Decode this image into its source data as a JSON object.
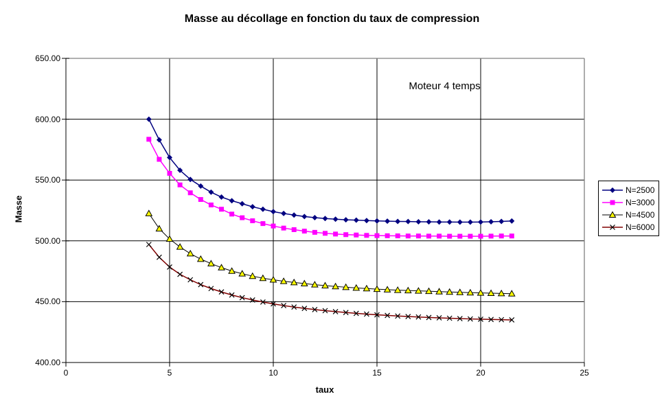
{
  "title": "Masse au décollage en fonction du taux de compression",
  "annotation": "Moteur 4 temps",
  "colors": {
    "background": "#ffffff",
    "grid": "#000000",
    "plot_border": "#808080",
    "axis": "#000000",
    "series1": "#000080",
    "series2": "#ff00ff",
    "series3_line": "#000000",
    "series3_fill": "#ffff00",
    "series4_line": "#800000",
    "series4_marker": "#000000"
  },
  "chart_data": {
    "type": "line",
    "title": "Masse au décollage en fonction du taux de compression",
    "xlabel": "taux",
    "ylabel": "Masse",
    "xlim": [
      0,
      25
    ],
    "ylim": [
      400,
      650
    ],
    "grid": true,
    "legend_position": "right-outside",
    "x_ticks": [
      {
        "value": 0,
        "label": "0"
      },
      {
        "value": 5,
        "label": "5"
      },
      {
        "value": 10,
        "label": "10"
      },
      {
        "value": 15,
        "label": "15"
      },
      {
        "value": 20,
        "label": "20"
      },
      {
        "value": 25,
        "label": "25"
      }
    ],
    "y_ticks": [
      {
        "value": 650,
        "label": "650.00"
      },
      {
        "value": 600,
        "label": "600.00"
      },
      {
        "value": 550,
        "label": "550.00"
      },
      {
        "value": 500,
        "label": "500.00"
      },
      {
        "value": 450,
        "label": "450.00"
      },
      {
        "value": 400,
        "label": "400.00"
      }
    ],
    "x": [
      4,
      4.5,
      5,
      5.5,
      6,
      6.5,
      7,
      7.5,
      8,
      8.5,
      9,
      9.5,
      10,
      10.5,
      11,
      11.5,
      12,
      12.5,
      13,
      13.5,
      14,
      14.5,
      15,
      15.5,
      16,
      16.5,
      17,
      17.5,
      18,
      18.5,
      19,
      19.5,
      20,
      20.5,
      21,
      21.5
    ],
    "series": [
      {
        "name": "N=2500",
        "marker": "diamond",
        "line_color": "#000080",
        "marker_color": "#000080",
        "values": [
          600,
          583,
          568.5,
          558,
          550.5,
          545,
          540,
          536,
          533,
          530.5,
          528,
          526,
          524,
          522.5,
          521.2,
          520,
          519.1,
          518.4,
          517.8,
          517.3,
          517,
          516.7,
          516.4,
          516.2,
          516,
          515.9,
          515.7,
          515.6,
          515.5,
          515.5,
          515.4,
          515.4,
          515.5,
          515.7,
          516,
          516.3
        ]
      },
      {
        "name": "N=3000",
        "marker": "square",
        "line_color": "#ff00ff",
        "marker_color": "#ff00ff",
        "values": [
          583.5,
          567,
          555.5,
          546,
          539.5,
          534,
          529.5,
          526,
          522,
          519,
          516.5,
          514.2,
          512.2,
          510.5,
          509.2,
          508,
          507,
          506.2,
          505.6,
          505.1,
          504.8,
          504.5,
          504.3,
          504.2,
          504.1,
          504,
          504,
          503.9,
          503.9,
          503.8,
          503.8,
          503.8,
          503.8,
          503.9,
          504,
          504
        ]
      },
      {
        "name": "N=4500",
        "marker": "triangle",
        "line_color": "#000000",
        "marker_color": "#ffff00",
        "marker_edge": "#000000",
        "values": [
          522.5,
          510,
          501.5,
          495,
          489.5,
          485,
          481.3,
          478,
          475.2,
          473,
          471,
          469.3,
          468,
          466.8,
          465.8,
          464.9,
          464,
          463.2,
          462.5,
          461.9,
          461.3,
          460.8,
          460.3,
          459.9,
          459.5,
          459.2,
          458.9,
          458.6,
          458.3,
          458,
          457.7,
          457.4,
          457.2,
          457,
          456.8,
          456.6
        ]
      },
      {
        "name": "N=6000",
        "marker": "x",
        "line_color": "#800000",
        "marker_color": "#000000",
        "values": [
          497,
          486.5,
          478.5,
          472.5,
          468,
          464,
          460.8,
          458,
          455.5,
          453.3,
          451.4,
          449.7,
          448.2,
          446.8,
          445.6,
          444.5,
          443.5,
          442.6,
          441.8,
          441.1,
          440.4,
          439.8,
          439.2,
          438.7,
          438.2,
          437.8,
          437.4,
          437,
          436.7,
          436.4,
          436.1,
          435.8,
          435.6,
          435.4,
          435.2,
          435
        ]
      }
    ]
  }
}
